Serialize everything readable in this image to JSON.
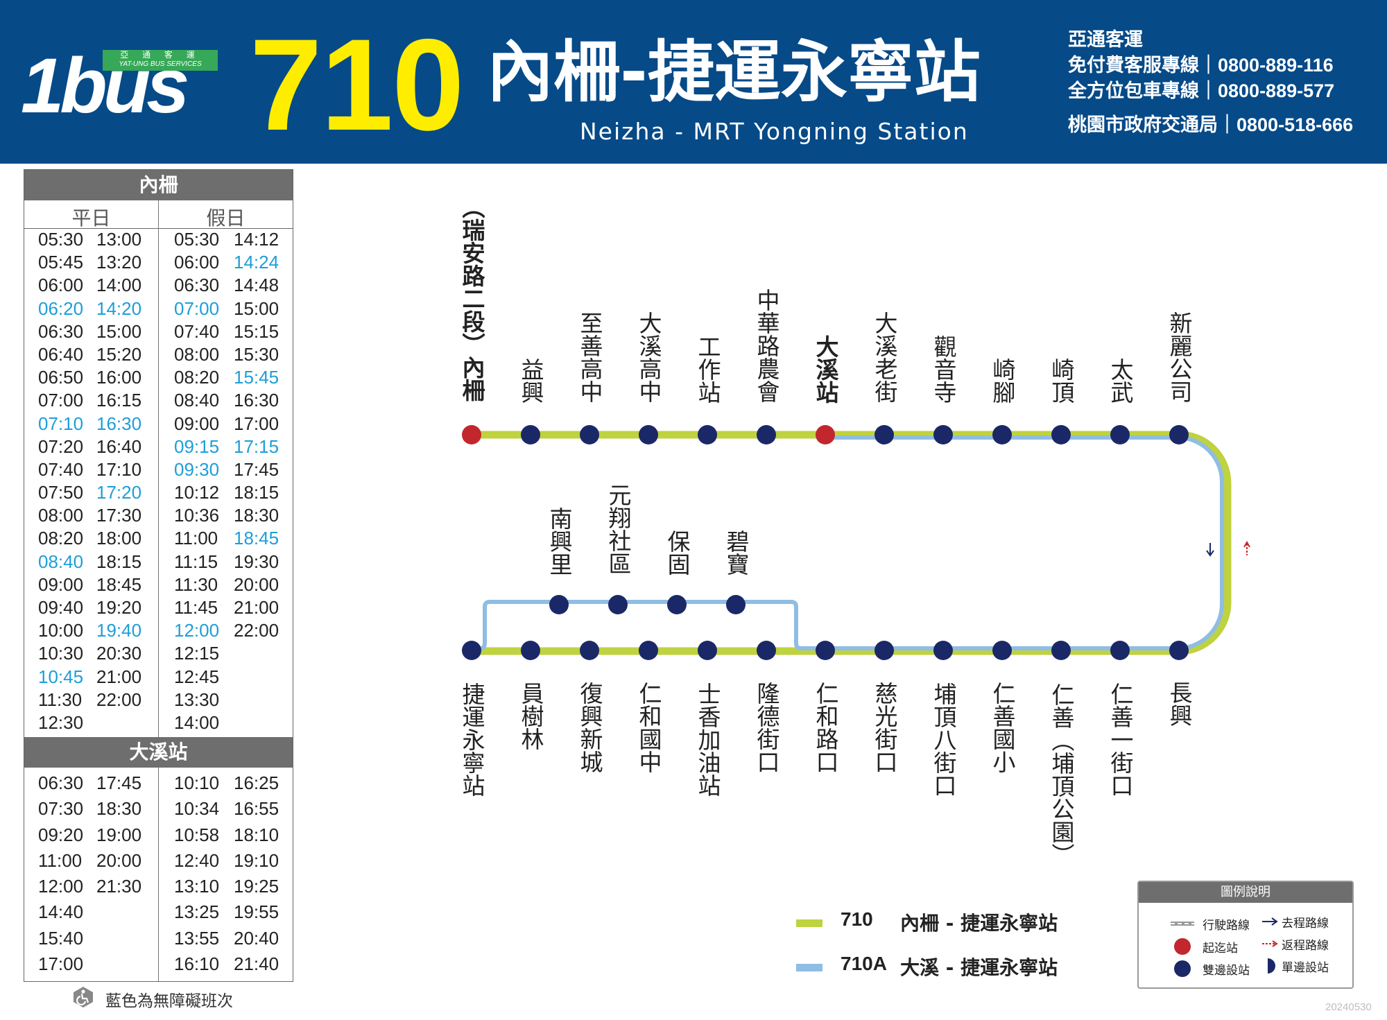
{
  "header": {
    "logo_text": "1bus",
    "logo_tag_zh": "亞 通 客 運",
    "logo_tag_en": "YAT-UNG BUS SERVICES",
    "route_number": "710",
    "route_name_zh": "內柵-捷運永寧站",
    "route_name_en": "Neizha - MRT Yongning Station",
    "company": "亞通客運",
    "contacts": [
      {
        "label": "免付費客服專線｜",
        "number": "0800-889-116"
      },
      {
        "label": "全方位包車專線｜",
        "number": "0800-889-577"
      },
      {
        "label": "桃園市政府交通局｜",
        "number": "0800-518-666"
      }
    ],
    "colors": {
      "header_bg": "#064a88",
      "route_number": "#ffed00",
      "logo_tag": "#36a857"
    }
  },
  "timetable": {
    "section1_title": "內柵",
    "weekday_label": "平日",
    "holiday_label": "假日",
    "section1_weekday_col1": [
      "05:30",
      "05:45",
      "06:00",
      "06:20",
      "06:30",
      "06:40",
      "06:50",
      "07:00",
      "07:10",
      "07:20",
      "07:40",
      "07:50",
      "08:00",
      "08:20",
      "08:40",
      "09:00",
      "09:40",
      "10:00",
      "10:30",
      "10:45",
      "11:30",
      "12:30"
    ],
    "section1_weekday_col1_accessible": [
      false,
      false,
      false,
      true,
      false,
      false,
      false,
      false,
      true,
      false,
      false,
      false,
      false,
      false,
      true,
      false,
      false,
      false,
      false,
      true,
      false,
      false
    ],
    "section1_weekday_col2": [
      "13:00",
      "13:20",
      "14:00",
      "14:20",
      "15:00",
      "15:20",
      "16:00",
      "16:15",
      "16:30",
      "16:40",
      "17:10",
      "17:20",
      "17:30",
      "18:00",
      "18:15",
      "18:45",
      "19:20",
      "19:40",
      "20:30",
      "21:00",
      "22:00"
    ],
    "section1_weekday_col2_accessible": [
      false,
      false,
      false,
      true,
      false,
      false,
      false,
      false,
      true,
      false,
      false,
      true,
      false,
      false,
      false,
      false,
      false,
      true,
      false,
      false,
      false
    ],
    "section1_holiday_col1": [
      "05:30",
      "06:00",
      "06:30",
      "07:00",
      "07:40",
      "08:00",
      "08:20",
      "08:40",
      "09:00",
      "09:15",
      "09:30",
      "10:12",
      "10:36",
      "11:00",
      "11:15",
      "11:30",
      "11:45",
      "12:00",
      "12:15",
      "12:45",
      "13:30",
      "14:00"
    ],
    "section1_holiday_col1_accessible": [
      false,
      false,
      false,
      true,
      false,
      false,
      false,
      false,
      false,
      true,
      true,
      false,
      false,
      false,
      false,
      false,
      false,
      true,
      false,
      false,
      false,
      false
    ],
    "section1_holiday_col2": [
      "14:12",
      "14:24",
      "14:48",
      "15:00",
      "15:15",
      "15:30",
      "15:45",
      "16:30",
      "17:00",
      "17:15",
      "17:45",
      "18:15",
      "18:30",
      "18:45",
      "19:30",
      "20:00",
      "21:00",
      "22:00"
    ],
    "section1_holiday_col2_accessible": [
      false,
      true,
      false,
      false,
      false,
      false,
      true,
      false,
      false,
      true,
      false,
      false,
      false,
      true,
      false,
      false,
      false,
      false
    ],
    "section2_title": "大溪站",
    "section2_weekday_col1": [
      "06:30",
      "07:30",
      "09:20",
      "11:00",
      "12:00",
      "14:40",
      "15:40",
      "17:00"
    ],
    "section2_weekday_col2": [
      "17:45",
      "18:30",
      "19:00",
      "20:00",
      "21:30"
    ],
    "section2_holiday_col1": [
      "10:10",
      "10:34",
      "10:58",
      "12:40",
      "13:10",
      "13:25",
      "13:55",
      "16:10"
    ],
    "section2_holiday_col2": [
      "16:25",
      "16:55",
      "18:10",
      "19:10",
      "19:25",
      "19:55",
      "20:40",
      "21:40"
    ],
    "accessible_color": "#1d9ed8",
    "accessible_note": "藍色為無障礙班次"
  },
  "map": {
    "top_stops": [
      {
        "name": "（瑞安路二段）內柵",
        "terminal": true,
        "bold": true
      },
      {
        "name": "益興"
      },
      {
        "name": "至善高中"
      },
      {
        "name": "大溪高中"
      },
      {
        "name": "工作站"
      },
      {
        "name": "中華路農會"
      },
      {
        "name": "大溪站",
        "terminal": true,
        "bold": true
      },
      {
        "name": "大溪老街"
      },
      {
        "name": "觀音寺"
      },
      {
        "name": "崎腳"
      },
      {
        "name": "崎頂"
      },
      {
        "name": "太武"
      },
      {
        "name": "新麗公司"
      }
    ],
    "middle_stops": [
      {
        "name": "南興里"
      },
      {
        "name": "元翔社區"
      },
      {
        "name": "保固"
      },
      {
        "name": "碧寶"
      }
    ],
    "bottom_stops": [
      {
        "name": "捷運永寧站"
      },
      {
        "name": "員樹林"
      },
      {
        "name": "復興新城"
      },
      {
        "name": "仁和國中"
      },
      {
        "name": "士香加油站"
      },
      {
        "name": "隆德街口"
      },
      {
        "name": "仁和路口"
      },
      {
        "name": "慈光街口"
      },
      {
        "name": "埔頂八街口"
      },
      {
        "name": "仁善國小"
      },
      {
        "name": "仁善（埔頂公園）"
      },
      {
        "name": "仁善一街口"
      },
      {
        "name": "長興"
      }
    ],
    "colors": {
      "route_710": "#bfd23f",
      "route_710a": "#8fbde3",
      "stop": "#1b2868",
      "terminal": "#c1272d"
    }
  },
  "route_legend": [
    {
      "code": "710",
      "name": "內柵 - 捷運永寧站",
      "color": "#bfd23f"
    },
    {
      "code": "710A",
      "name": "大溪 - 捷運永寧站",
      "color": "#8fbde3"
    }
  ],
  "legend": {
    "title": "圖例說明",
    "route_line": "行駛路線",
    "outbound": "去程路線",
    "terminal": "起迄站",
    "return": "返程路線",
    "both_sides": "雙邊設站",
    "one_side": "單邊設站"
  },
  "date_code": "20240530"
}
